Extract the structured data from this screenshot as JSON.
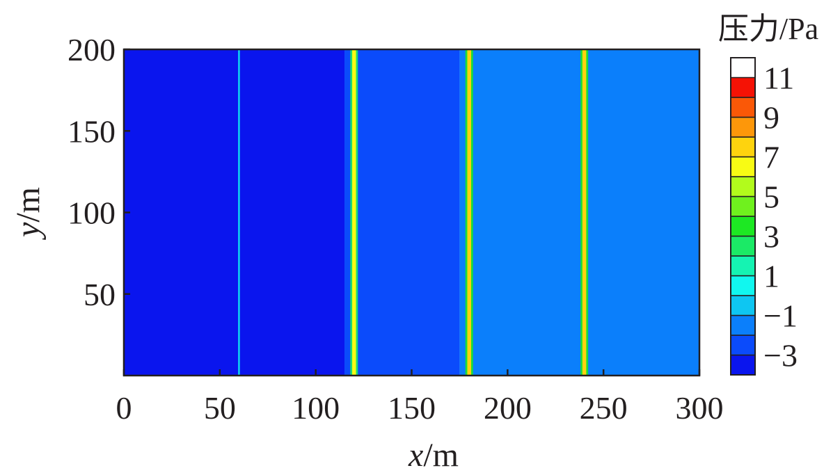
{
  "chart_data": {
    "type": "heatmap",
    "title": "",
    "xlabel": {
      "var": "x",
      "unit": "/m"
    },
    "ylabel": {
      "var": "y",
      "unit": "/m"
    },
    "xlim": [
      0,
      300
    ],
    "ylim": [
      0,
      200
    ],
    "x_ticks": [
      "0",
      "50",
      "100",
      "150",
      "200",
      "250",
      "300"
    ],
    "y_ticks": [
      "50",
      "100",
      "150",
      "200"
    ],
    "x_tick_values": [
      0,
      50,
      100,
      150,
      200,
      250,
      300
    ],
    "y_tick_values": [
      50,
      100,
      150,
      200
    ],
    "regions": [
      {
        "x_start": 0,
        "x_end": 115,
        "value": -3.3
      },
      {
        "x_start": 115,
        "x_end": 175,
        "value": -2.5
      },
      {
        "x_start": 175,
        "x_end": 300,
        "value": -1.7
      }
    ],
    "wave_fronts": [
      {
        "x": 60,
        "value": -0.5,
        "width": 1
      },
      {
        "x": 120,
        "value": 6.5,
        "width": 2
      },
      {
        "x": 180,
        "value": 7.0,
        "width": 2
      },
      {
        "x": 240,
        "value": 7.0,
        "width": 2
      }
    ],
    "colorbar": {
      "title": "压力/Pa",
      "min": -4,
      "max": 12,
      "step": 1,
      "labels": [
        "11",
        "9",
        "7",
        "5",
        "3",
        "1",
        "−1",
        "−3"
      ],
      "label_values": [
        11,
        9,
        7,
        5,
        3,
        1,
        -1,
        -3
      ],
      "colors": [
        "#0a15ee",
        "#0b4bfb",
        "#0b7ffb",
        "#0ec6f2",
        "#11f7ef",
        "#15f3b2",
        "#1bea66",
        "#1de823",
        "#6ff11e",
        "#b2fb1c",
        "#f8fb14",
        "#fed30e",
        "#fd970a",
        "#fa5807",
        "#f51205"
      ]
    }
  }
}
